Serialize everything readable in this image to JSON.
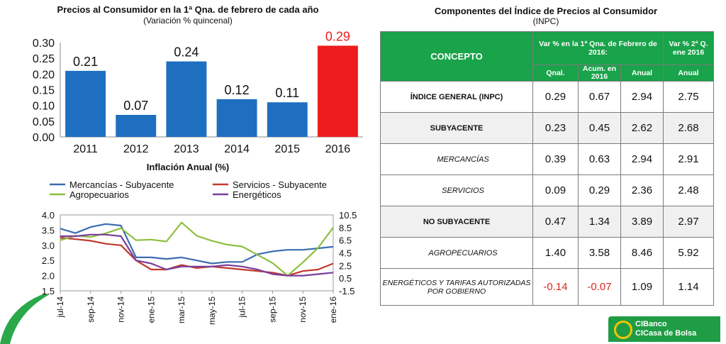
{
  "bar_panel": {
    "title": "Precios al Consumidor en la 1ª Qna. de febrero de cada año",
    "subtitle": "(Variación % quincenal)"
  },
  "line_panel": {
    "title": "Inflación Anual (%)"
  },
  "table_panel": {
    "title": "Componentes del Índice de Precios al Consumidor",
    "subtitle": "(INPC)",
    "header": {
      "concepto": "CONCEPTO",
      "group1": "Var % en la 1ª Qna. de Febrero de 2016:",
      "group2": "Var % 2ª Q. ene 2016",
      "col_qnal": "Qnal.",
      "col_acum": "Acum. en 2016",
      "col_anual1": "Anual",
      "col_anual2": "Anual"
    },
    "rows": [
      {
        "label": "ÍNDICE GENERAL (INPC)",
        "qnal": "0.29",
        "acum": "0.67",
        "anual": "2.94",
        "anual_ene": "2.75"
      },
      {
        "label": "SUBYACENTE",
        "qnal": "0.23",
        "acum": "0.45",
        "anual": "2.62",
        "anual_ene": "2.68"
      },
      {
        "label": "MERCANCÍAS",
        "qnal": "0.39",
        "acum": "0.63",
        "anual": "2.94",
        "anual_ene": "2.91"
      },
      {
        "label": "SERVICIOS",
        "qnal": "0.09",
        "acum": "0.29",
        "anual": "2.36",
        "anual_ene": "2.48"
      },
      {
        "label": "NO SUBYACENTE",
        "qnal": "0.47",
        "acum": "1.34",
        "anual": "3.89",
        "anual_ene": "2.97"
      },
      {
        "label": "AGROPECUARIOS",
        "qnal": "1.40",
        "acum": "3.58",
        "anual": "8.46",
        "anual_ene": "5.92"
      },
      {
        "label": "ENERGÉTICOS Y TARIFAS AUTORIZADAS POR GOBIERNO",
        "qnal": "-0.14",
        "acum": "-0.07",
        "anual": "1.09",
        "anual_ene": "1.14"
      }
    ],
    "negative_color": "#d62a1e",
    "header_color": "#19a34a"
  },
  "logo": {
    "line1": "CIBanco",
    "line2": "CICasa de Bolsa"
  },
  "chart_data": [
    {
      "type": "bar",
      "categories": [
        "2011",
        "2012",
        "2013",
        "2014",
        "2015",
        "2016"
      ],
      "values": [
        0.21,
        0.07,
        0.24,
        0.12,
        0.11,
        0.29
      ],
      "value_labels": [
        "0.21",
        "0.07",
        "0.24",
        "0.12",
        "0.11",
        "0.29"
      ],
      "colors": [
        "#1f6fc1",
        "#1f6fc1",
        "#1f6fc1",
        "#1f6fc1",
        "#1f6fc1",
        "#ee1c1c"
      ],
      "highlight_label_color": "#ee1c1c",
      "ylim": [
        0,
        0.3
      ],
      "yticks": [
        "0.00",
        "0.05",
        "0.10",
        "0.15",
        "0.20",
        "0.25",
        "0.30"
      ],
      "grid": false
    },
    {
      "type": "line",
      "x_ticks": [
        "jul-14",
        "sep-14",
        "nov-14",
        "ene-15",
        "mar-15",
        "may-15",
        "jul-15",
        "sep-15",
        "nov-15",
        "ene-16"
      ],
      "left_axis": {
        "ylim": [
          1.5,
          4.0
        ],
        "ticks": [
          "1.5",
          "2.0",
          "2.5",
          "3.0",
          "3.5",
          "4.0"
        ]
      },
      "right_axis": {
        "ylim": [
          -1.5,
          10.5
        ],
        "ticks": [
          "-1.5",
          "0.5",
          "2.5",
          "4.5",
          "6.5",
          "8.5",
          "10.5"
        ]
      },
      "legend_position": "top",
      "series": [
        {
          "name": "Mercancías - Subyacente",
          "color": "#3c6db0",
          "axis": "left",
          "values": [
            3.55,
            3.4,
            3.6,
            3.7,
            3.65,
            2.6,
            2.6,
            2.55,
            2.6,
            2.5,
            2.4,
            2.45,
            2.45,
            2.7,
            2.8,
            2.85,
            2.85,
            2.9,
            2.95
          ]
        },
        {
          "name": "Servicios - Subyacente",
          "color": "#c0392b",
          "axis": "left",
          "values": [
            3.25,
            3.2,
            3.15,
            3.05,
            3.0,
            2.5,
            2.2,
            2.2,
            2.35,
            2.25,
            2.3,
            2.25,
            2.2,
            2.15,
            2.1,
            2.0,
            2.15,
            2.2,
            2.4
          ]
        },
        {
          "name": "Agropecuarios",
          "color": "#8cbf3f",
          "axis": "right",
          "values": [
            6.5,
            7.2,
            7.0,
            7.6,
            8.4,
            6.5,
            6.6,
            6.3,
            9.3,
            7.2,
            6.4,
            5.8,
            5.5,
            4.2,
            2.9,
            0.9,
            3.0,
            5.3,
            8.5
          ]
        },
        {
          "name": "Energéticos",
          "color": "#7a3e9d",
          "axis": "left",
          "values": [
            3.3,
            3.3,
            3.35,
            3.35,
            3.3,
            2.5,
            2.4,
            2.2,
            2.3,
            2.3,
            2.3,
            2.35,
            2.3,
            2.2,
            2.05,
            2.0,
            2.0,
            2.05,
            2.1
          ]
        }
      ]
    }
  ]
}
